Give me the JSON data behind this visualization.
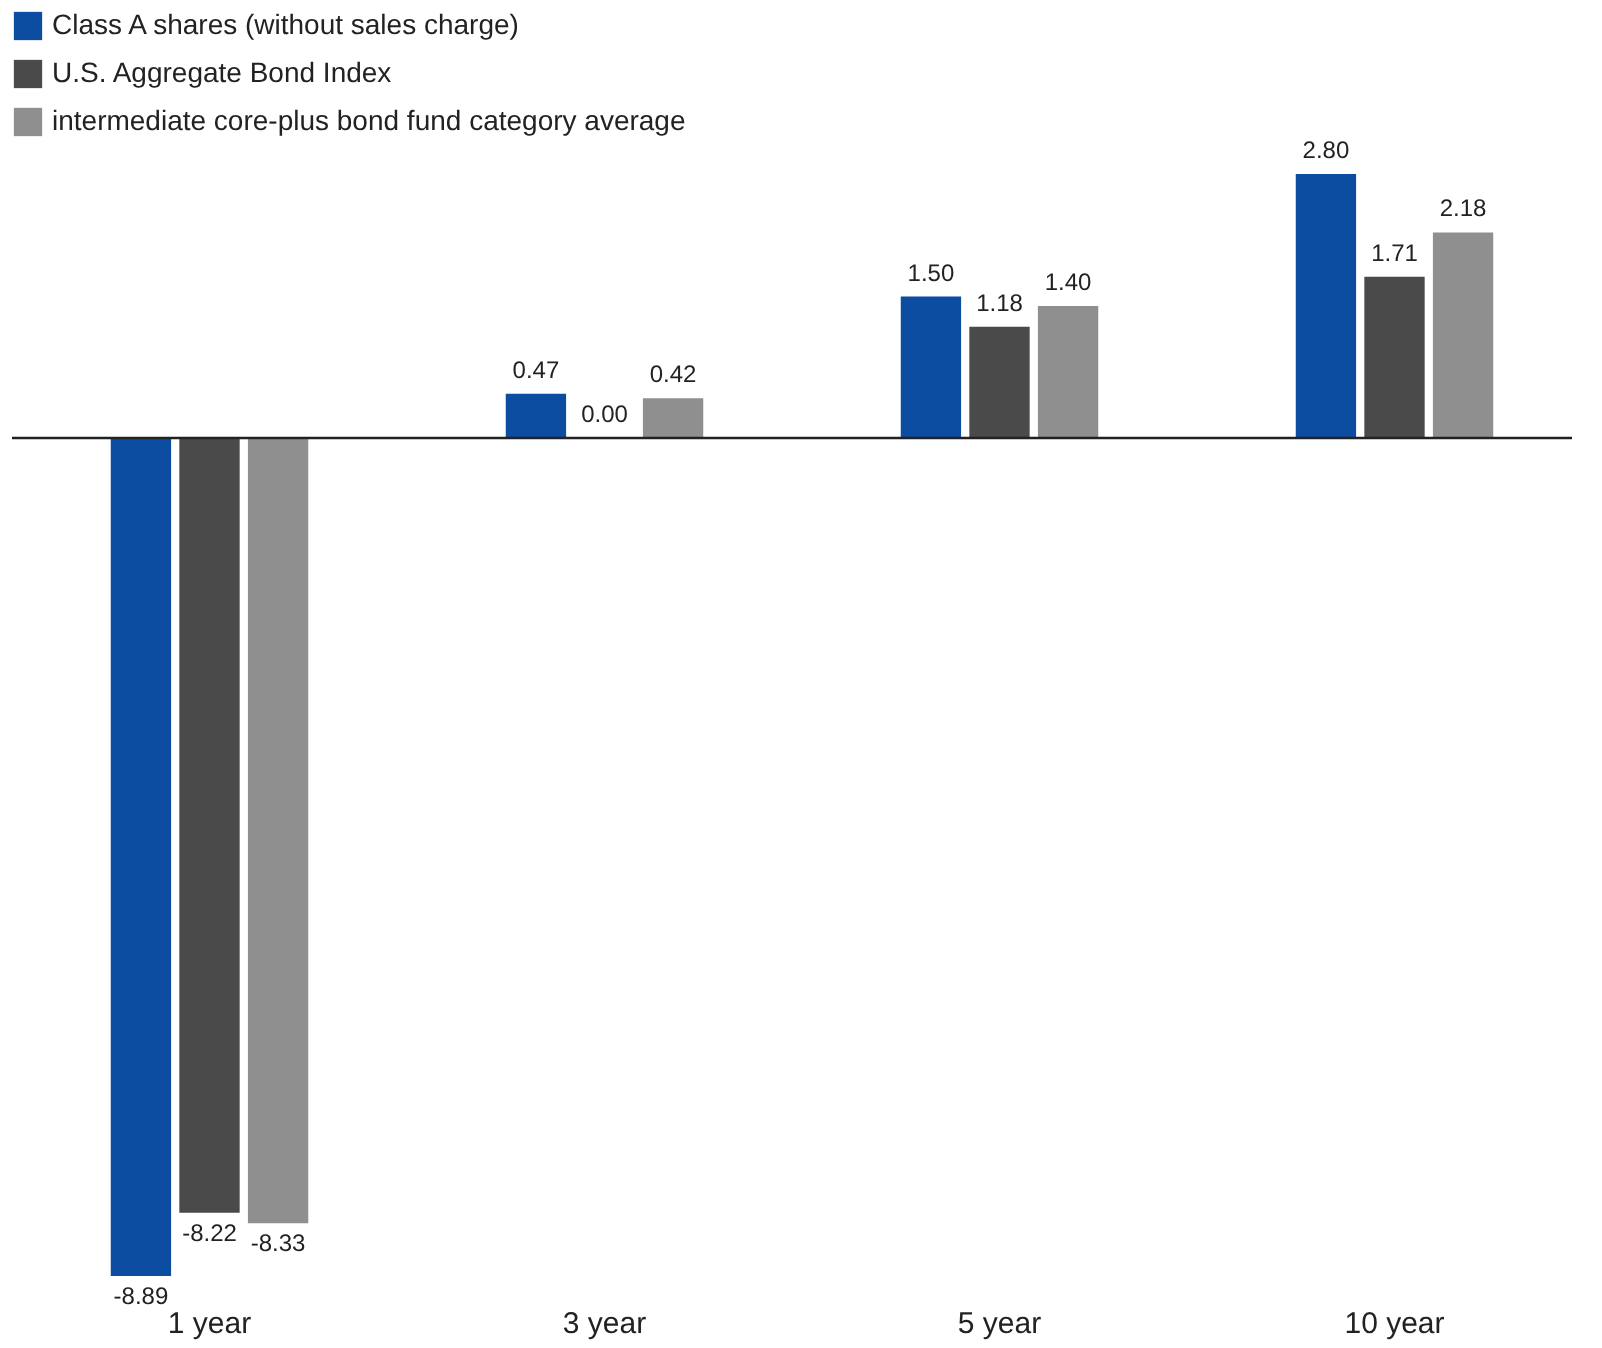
{
  "chart_data": {
    "type": "bar",
    "categories": [
      "1 year",
      "3 year",
      "5 year",
      "10 year"
    ],
    "series": [
      {
        "name": "Class A shares (without sales charge)",
        "color": "#0c4da2",
        "values": [
          -8.89,
          0.47,
          1.5,
          2.8
        ],
        "value_labels": [
          "-8.89",
          "0.47",
          "1.50",
          "2.80"
        ]
      },
      {
        "name": "U.S. Aggregate Bond Index",
        "color": "#4a4a4a",
        "values": [
          -8.22,
          0.0,
          1.18,
          1.71
        ],
        "value_labels": [
          "-8.22",
          "0.00",
          "1.18",
          "1.71"
        ]
      },
      {
        "name": "intermediate core-plus bond fund category average",
        "color": "#8f8f8f",
        "values": [
          -8.33,
          0.42,
          1.4,
          2.18
        ],
        "value_labels": [
          "-8.33",
          "0.42",
          "1.40",
          "2.18"
        ]
      }
    ],
    "legend": "top left",
    "grid": false
  }
}
